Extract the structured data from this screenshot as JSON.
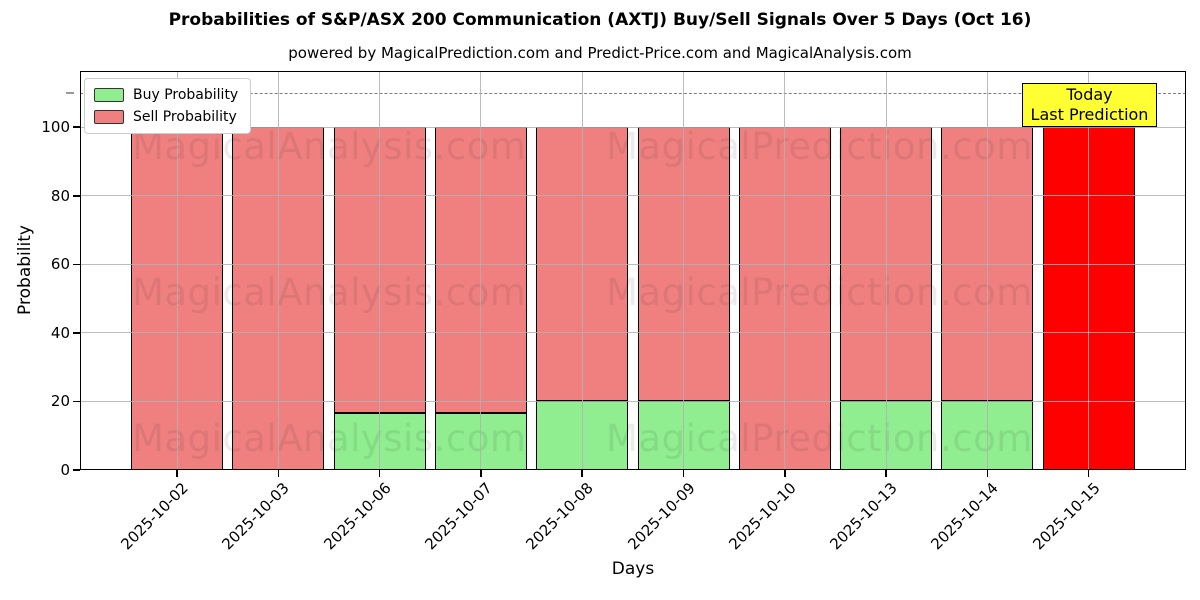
{
  "header": {
    "title": "Probabilities of S&P/ASX 200 Communication (AXTJ) Buy/Sell Signals Over 5 Days (Oct 16)",
    "subtitle": "powered by MagicalPrediction.com and Predict-Price.com and MagicalAnalysis.com"
  },
  "axes": {
    "xlabel": "Days",
    "ylabel": "Probability",
    "yticks": [
      0,
      20,
      40,
      60,
      80,
      100
    ]
  },
  "legend": {
    "items": [
      {
        "label": "Buy Probability",
        "color": "#90EE90"
      },
      {
        "label": "Sell Probability",
        "color": "#F08080"
      }
    ]
  },
  "annotation": {
    "line1": "Today",
    "line2": "Last Prediction",
    "bg_color": "#FFFF33"
  },
  "watermarks": {
    "texts": [
      "MagicalAnalysis.com",
      "MagicalPrediction.com"
    ]
  },
  "chart_data": {
    "type": "bar",
    "stacked": true,
    "title": "Probabilities of S&P/ASX 200 Communication (AXTJ) Buy/Sell Signals Over 5 Days (Oct 16)",
    "xlabel": "Days",
    "ylabel": "Probability",
    "categories": [
      "2025-10-02",
      "2025-10-03",
      "2025-10-06",
      "2025-10-07",
      "2025-10-08",
      "2025-10-09",
      "2025-10-10",
      "2025-10-13",
      "2025-10-14",
      "2025-10-15"
    ],
    "series": [
      {
        "name": "Buy Probability",
        "color": "#90EE90",
        "values": [
          0,
          0,
          16.5,
          16.5,
          20,
          20,
          0,
          20,
          20,
          0
        ]
      },
      {
        "name": "Sell Probability",
        "color": "#F08080",
        "values": [
          100,
          100,
          83.5,
          83.5,
          80,
          80,
          100,
          80,
          80,
          100
        ]
      }
    ],
    "highlight": {
      "index": 9,
      "category": "2025-10-15",
      "sell_color": "#FF0000",
      "label": "Today Last Prediction"
    },
    "ylim": [
      0,
      116.4
    ],
    "yticks": [
      0,
      20,
      40,
      60,
      80,
      100
    ],
    "reference_line_y": 110,
    "grid": true,
    "legend_position": "upper left"
  }
}
